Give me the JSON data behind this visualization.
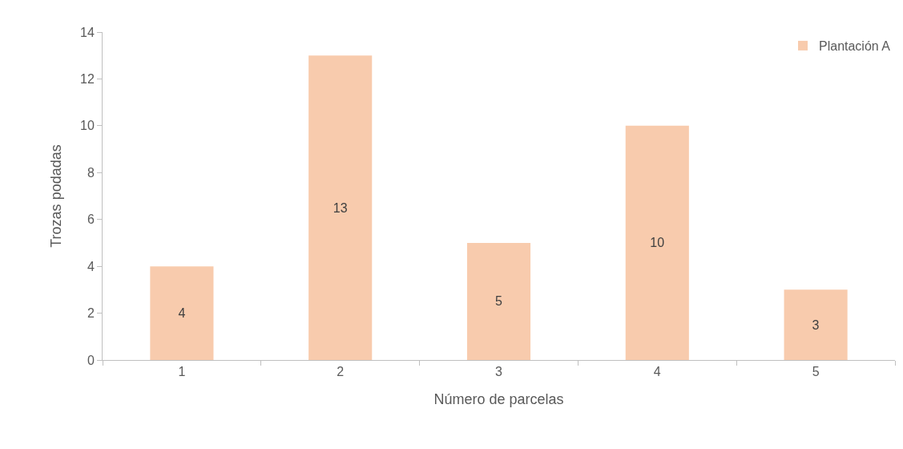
{
  "chart_data": {
    "type": "bar",
    "xlabel": "Número de parcelas",
    "ylabel": "Trozas podadas",
    "categories": [
      "1",
      "2",
      "3",
      "4",
      "5"
    ],
    "series": [
      {
        "name": "Plantación A",
        "color": "#f8cbad",
        "values": [
          4,
          13,
          5,
          10,
          3
        ]
      }
    ],
    "ylim": [
      0,
      14
    ],
    "yticks": [
      0,
      2,
      4,
      6,
      8,
      10,
      12,
      14
    ],
    "grid": false,
    "legend": "top right",
    "data_labels": true
  }
}
